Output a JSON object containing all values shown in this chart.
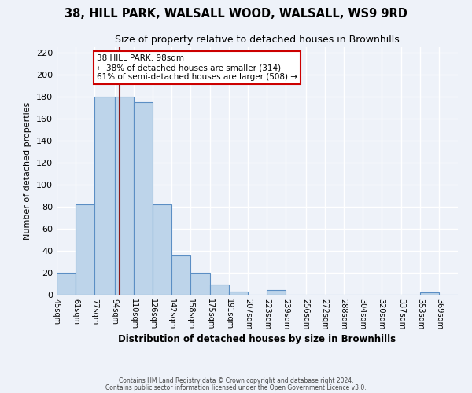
{
  "title": "38, HILL PARK, WALSALL WOOD, WALSALL, WS9 9RD",
  "subtitle": "Size of property relative to detached houses in Brownhills",
  "xlabel": "Distribution of detached houses by size in Brownhills",
  "ylabel": "Number of detached properties",
  "bin_labels": [
    "45sqm",
    "61sqm",
    "77sqm",
    "94sqm",
    "110sqm",
    "126sqm",
    "142sqm",
    "158sqm",
    "175sqm",
    "191sqm",
    "207sqm",
    "223sqm",
    "239sqm",
    "256sqm",
    "272sqm",
    "288sqm",
    "304sqm",
    "320sqm",
    "337sqm",
    "353sqm",
    "369sqm"
  ],
  "bin_edges": [
    45,
    61,
    77,
    94,
    110,
    126,
    142,
    158,
    175,
    191,
    207,
    223,
    239,
    256,
    272,
    288,
    304,
    320,
    337,
    353,
    369,
    385
  ],
  "bar_heights": [
    20,
    82,
    180,
    180,
    175,
    82,
    36,
    20,
    9,
    3,
    0,
    4,
    0,
    0,
    0,
    0,
    0,
    0,
    0,
    2,
    0
  ],
  "bar_color": "#bdd4ea",
  "bar_edge_color": "#5b8ec4",
  "vline_x": 98,
  "vline_color": "#8b1a1a",
  "annotation_text": "38 HILL PARK: 98sqm\n← 38% of detached houses are smaller (314)\n61% of semi-detached houses are larger (508) →",
  "annotation_box_color": "#ffffff",
  "annotation_border_color": "#cc0000",
  "ylim": [
    0,
    225
  ],
  "yticks": [
    0,
    20,
    40,
    60,
    80,
    100,
    120,
    140,
    160,
    180,
    200,
    220
  ],
  "background_color": "#eef2f9",
  "grid_color": "#ffffff",
  "footer_line1": "Contains HM Land Registry data © Crown copyright and database right 2024.",
  "footer_line2": "Contains public sector information licensed under the Open Government Licence v3.0."
}
